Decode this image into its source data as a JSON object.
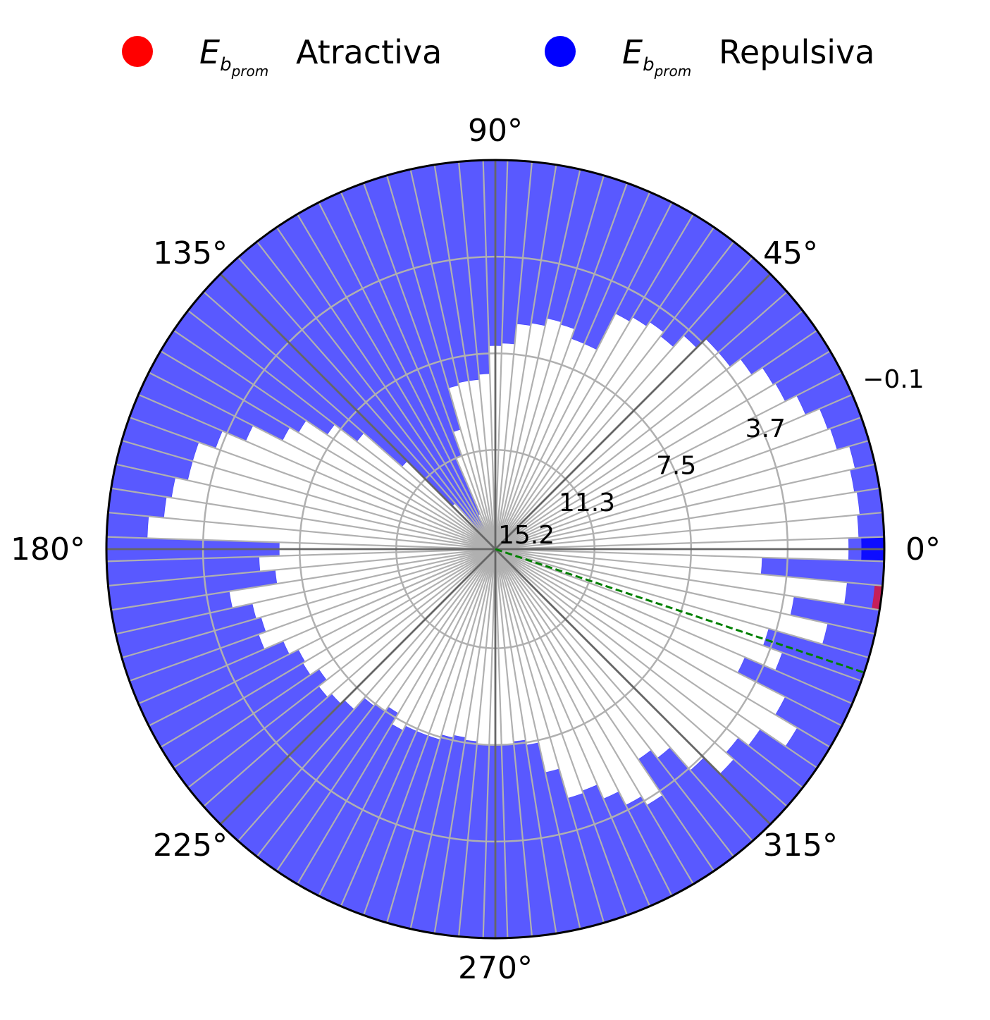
{
  "legend": {
    "items": [
      {
        "symbol": "E",
        "subscript": "b",
        "sub_subscript": "prom",
        "label": "Atractiva",
        "color": "#ff0000"
      },
      {
        "symbol": "E",
        "subscript": "b",
        "sub_subscript": "prom",
        "label": "Repulsiva",
        "color": "#0000ff"
      }
    ]
  },
  "chart_data": {
    "type": "polar-bar",
    "r_inverted": true,
    "r_range": [
      15.2,
      -0.1
    ],
    "radial_tick_labels": [
      "15.2",
      "11.3",
      "7.5",
      "3.7",
      "−0.1"
    ],
    "radial_tick_values": [
      15.2,
      11.3,
      7.5,
      3.7,
      -0.1
    ],
    "angle_tick_labels": [
      "0°",
      "45°",
      "90°",
      "135°",
      "180°",
      "225°",
      "270°",
      "315°"
    ],
    "angle_tick_values": [
      0,
      45,
      90,
      135,
      180,
      225,
      270,
      315
    ],
    "bar_width_deg": 3.6,
    "bar_angles_deg": [
      0,
      3.6,
      7.2,
      10.8,
      14.4,
      18,
      21.6,
      25.2,
      28.8,
      32.4,
      36,
      39.6,
      43.2,
      46.8,
      50.4,
      54,
      57.6,
      61.2,
      64.8,
      68.4,
      72,
      75.6,
      79.2,
      82.8,
      86.4,
      90,
      93.6,
      97.2,
      100.8,
      104.4,
      108,
      111.6,
      115.2,
      118.8,
      122.4,
      126,
      129.6,
      133.2,
      136.8,
      140.4,
      144,
      147.6,
      151.2,
      154.8,
      158.4,
      162,
      165.6,
      169.2,
      172.8,
      176.4,
      180,
      183.6,
      187.2,
      190.8,
      194.4,
      198,
      201.6,
      205.2,
      208.8,
      212.4,
      216,
      219.6,
      223.2,
      226.8,
      230.4,
      234,
      237.6,
      241.2,
      244.8,
      248.4,
      252,
      255.6,
      259.2,
      262.8,
      266.4,
      270,
      273.6,
      277.2,
      280.8,
      284.4,
      288,
      291.6,
      295.2,
      298.8,
      302.4,
      306,
      309.6,
      313.2,
      316.8,
      320.4,
      324,
      327.6,
      331.2,
      334.8,
      338.4,
      342,
      345.6,
      349.2,
      352.8,
      356.4
    ],
    "series": [
      {
        "name": "Repulsiva",
        "color": "#0000ff",
        "alpha": 0.65,
        "values": [
          1.3,
          0.9,
          0.8,
          0.9,
          0.7,
          1.2,
          1.3,
          1.9,
          2.4,
          2.5,
          3.0,
          3.5,
          3.5,
          4.0,
          4.6,
          4.4,
          4.6,
          4.8,
          6.4,
          6.4,
          6.0,
          5.9,
          6.2,
          6.3,
          7.1,
          7.2,
          8.3,
          8.5,
          8.5,
          8.6,
          10.3,
          11.3,
          13.7,
          14.5,
          14.6,
          14.6,
          14.6,
          12.8,
          10.3,
          8.3,
          7.2,
          6.2,
          5.8,
          4.5,
          3.5,
          2.8,
          2.8,
          2.3,
          2.1,
          1.5,
          6.7,
          5.9,
          6.5,
          4.6,
          5.4,
          5.6,
          5.3,
          6.1,
          6.5,
          6.4,
          6.8,
          6.4,
          6.6,
          6.8,
          7.4,
          7.5,
          7.7,
          7.2,
          7.4,
          7.4,
          7.4,
          7.6,
          7.7,
          7.6,
          7.5,
          7.5,
          7.5,
          7.6,
          7.4,
          6.2,
          5.0,
          5.1,
          4.5,
          3.9,
          3.5,
          5.2,
          4.8,
          3.6,
          2.7,
          3.1,
          2.6,
          1.4,
          2.4,
          4.5,
          3.2,
          4.0,
          1.8,
          3.3,
          1.3,
          4.7
        ],
        "note_values": "Average repulsive E_b per angular bin (inverted radial axis: bar extends from outer edge -0.1 inward to value)"
      },
      {
        "name": "Atractiva",
        "color": "#ff0000",
        "alpha": 0.65,
        "values": [
          null,
          null,
          null,
          null,
          null,
          null,
          null,
          null,
          null,
          null,
          null,
          null,
          null,
          null,
          null,
          null,
          null,
          null,
          null,
          null,
          null,
          null,
          null,
          null,
          null,
          null,
          null,
          null,
          null,
          null,
          null,
          null,
          null,
          null,
          null,
          null,
          null,
          null,
          null,
          null,
          null,
          null,
          null,
          null,
          null,
          null,
          null,
          null,
          null,
          null,
          null,
          null,
          null,
          null,
          null,
          null,
          null,
          null,
          null,
          null,
          null,
          null,
          null,
          null,
          null,
          null,
          null,
          null,
          null,
          null,
          null,
          null,
          null,
          null,
          null,
          null,
          null,
          null,
          null,
          null,
          null,
          null,
          null,
          null,
          null,
          null,
          null,
          null,
          null,
          null,
          null,
          null,
          null,
          null,
          null,
          null,
          null,
          null,
          0.2,
          null
        ]
      }
    ],
    "highlight_bar": {
      "angle_deg": 0,
      "value": 0.8,
      "color": "#0000ff",
      "alpha": 0.85
    },
    "reference_line": {
      "angle_deg": 341.5,
      "color": "#008000",
      "style": "dashed"
    },
    "grid": true
  }
}
